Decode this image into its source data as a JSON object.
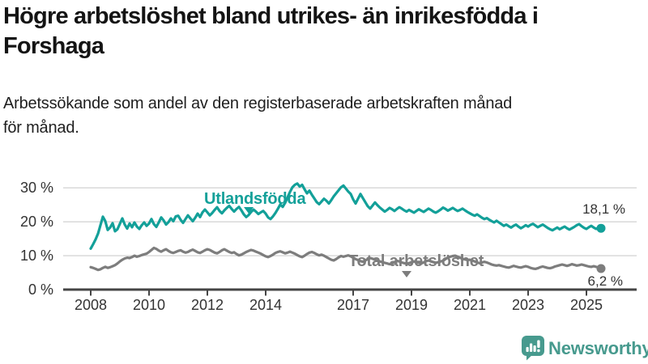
{
  "header": {
    "title_line1": "Högre arbetslöshet bland utrikes- än inrikesfödda i",
    "title_line2": "Forshaga",
    "subtitle_line1": "Arbetssökande som andel av den registerbaserade arbetskraften månad",
    "subtitle_line2": "för månad."
  },
  "chart_data": {
    "type": "line",
    "unit": "%",
    "x_range": {
      "start_year": 2008,
      "end_year": 2025.5,
      "frequency": "monthly"
    },
    "x_ticks": [
      "2008",
      "2010",
      "2012",
      "2014",
      "2017",
      "2019",
      "2021",
      "2023",
      "2025"
    ],
    "y_ticks": [
      {
        "label": "0 %",
        "value": 0
      },
      {
        "label": "10 %",
        "value": 10
      },
      {
        "label": "20 %",
        "value": 20
      },
      {
        "label": "30 %",
        "value": 30
      }
    ],
    "ylim": [
      0,
      33
    ],
    "grid": true,
    "legend_position": "inline-labels",
    "series": [
      {
        "name": "Utlandsfödda",
        "color": "#13a099",
        "end_label": "18,1 %",
        "end_value": 18.1,
        "values": [
          12.1,
          13.4,
          14.8,
          16.5,
          19.0,
          21.5,
          20.2,
          17.6,
          18.3,
          19.6,
          17.2,
          17.8,
          19.4,
          21.0,
          19.2,
          18.0,
          19.5,
          18.4,
          19.8,
          18.6,
          17.9,
          19.0,
          19.8,
          18.8,
          19.5,
          20.8,
          19.3,
          18.5,
          19.8,
          21.3,
          20.4,
          19.2,
          19.9,
          21.0,
          20.2,
          21.6,
          21.8,
          20.6,
          19.7,
          20.8,
          21.9,
          21.0,
          20.2,
          21.2,
          22.4,
          21.4,
          22.8,
          23.6,
          22.8,
          21.9,
          22.6,
          23.5,
          24.3,
          23.2,
          22.5,
          23.4,
          24.1,
          24.7,
          23.8,
          23.0,
          23.8,
          24.4,
          23.4,
          22.2,
          21.4,
          22.0,
          22.9,
          23.6,
          23.0,
          22.3,
          22.8,
          23.2,
          22.4,
          21.3,
          20.8,
          21.6,
          22.6,
          23.8,
          25.1,
          24.4,
          25.6,
          27.2,
          28.8,
          30.2,
          30.9,
          31.3,
          30.4,
          30.9,
          29.6,
          28.4,
          29.2,
          28.0,
          26.9,
          25.8,
          25.2,
          26.0,
          26.8,
          26.2,
          25.4,
          26.4,
          27.5,
          28.4,
          29.3,
          30.2,
          30.7,
          29.8,
          28.9,
          28.2,
          26.6,
          25.4,
          26.8,
          28.2,
          27.0,
          25.8,
          24.6,
          23.9,
          24.8,
          25.7,
          24.9,
          24.2,
          23.6,
          23.0,
          23.5,
          24.1,
          23.7,
          23.2,
          23.8,
          24.3,
          23.9,
          23.4,
          23.0,
          23.5,
          23.1,
          22.7,
          23.2,
          23.7,
          23.3,
          22.9,
          23.4,
          23.9,
          23.5,
          23.0,
          22.7,
          23.1,
          23.6,
          24.2,
          23.8,
          23.3,
          23.7,
          24.1,
          23.6,
          23.2,
          23.5,
          23.9,
          23.4,
          22.9,
          22.5,
          22.1,
          21.8,
          22.2,
          21.7,
          21.2,
          20.8,
          21.1,
          20.6,
          20.2,
          19.8,
          20.3,
          19.8,
          19.3,
          18.8,
          19.2,
          18.7,
          18.3,
          18.8,
          19.2,
          18.6,
          18.1,
          18.5,
          19.0,
          18.6,
          19.1,
          19.4,
          18.9,
          18.4,
          18.8,
          19.2,
          18.7,
          18.2,
          17.8,
          17.5,
          17.9,
          18.3,
          17.8,
          18.2,
          18.6,
          18.1,
          17.7,
          18.1,
          18.5,
          19.0,
          19.3,
          18.7,
          18.2,
          17.9,
          18.4,
          18.8,
          18.3,
          17.9,
          18.3,
          18.1
        ]
      },
      {
        "name": "Total arbetslöshet",
        "color": "#7d7d7d",
        "end_label": "6,2 %",
        "end_value": 6.2,
        "values": [
          6.6,
          6.4,
          6.1,
          5.8,
          6.0,
          6.4,
          6.7,
          6.4,
          6.6,
          6.9,
          7.2,
          7.7,
          8.3,
          8.8,
          9.2,
          9.4,
          9.3,
          9.6,
          10.0,
          9.7,
          9.9,
          10.2,
          10.4,
          10.6,
          11.1,
          11.7,
          12.3,
          12.0,
          11.5,
          11.2,
          11.6,
          11.9,
          11.4,
          11.0,
          10.8,
          11.1,
          11.4,
          11.6,
          11.2,
          10.9,
          11.1,
          11.5,
          11.8,
          11.4,
          11.0,
          10.8,
          11.2,
          11.6,
          11.9,
          11.7,
          11.3,
          10.9,
          10.7,
          11.1,
          11.6,
          11.9,
          11.5,
          11.1,
          10.8,
          11.0,
          10.5,
          10.1,
          10.3,
          10.7,
          11.1,
          11.4,
          11.7,
          11.5,
          11.2,
          10.9,
          10.6,
          10.2,
          9.8,
          9.6,
          9.9,
          10.3,
          10.8,
          11.1,
          11.3,
          11.0,
          10.7,
          10.9,
          11.2,
          10.9,
          10.6,
          10.2,
          9.8,
          9.6,
          10.0,
          10.5,
          10.9,
          11.1,
          10.8,
          10.4,
          10.1,
          10.3,
          10.0,
          9.6,
          9.2,
          8.8,
          8.6,
          9.0,
          9.5,
          9.9,
          9.7,
          9.9,
          10.1,
          9.8,
          9.4,
          9.0,
          8.7,
          8.4,
          8.2,
          8.6,
          9.0,
          9.3,
          9.1,
          8.8,
          8.5,
          8.3,
          8.1,
          7.9,
          7.7,
          7.5,
          7.7,
          8.1,
          8.5,
          8.3,
          8.0,
          7.8,
          7.6,
          7.8,
          8.1,
          8.3,
          8.1,
          7.9,
          7.7,
          8.0,
          8.4,
          8.6,
          8.3,
          8.1,
          7.9,
          8.1,
          8.3,
          8.5,
          9.0,
          9.5,
          9.7,
          9.9,
          10.0,
          9.7,
          9.4,
          9.1,
          8.9,
          8.7,
          8.8,
          8.6,
          8.3,
          8.0,
          7.8,
          8.0,
          8.2,
          8.0,
          7.7,
          7.4,
          7.2,
          7.1,
          7.2,
          7.0,
          6.8,
          6.6,
          6.5,
          6.7,
          7.0,
          6.8,
          6.6,
          6.5,
          6.7,
          6.9,
          6.7,
          6.4,
          6.2,
          6.1,
          6.3,
          6.6,
          6.8,
          6.6,
          6.4,
          6.3,
          6.5,
          6.8,
          7.0,
          7.2,
          7.4,
          7.2,
          7.0,
          7.2,
          7.5,
          7.3,
          7.1,
          7.2,
          7.4,
          7.2,
          7.0,
          6.8,
          6.7,
          6.9,
          6.7,
          6.5,
          6.2
        ]
      }
    ]
  },
  "branding": {
    "name": "Newsworthy",
    "color": "#479a8e"
  }
}
